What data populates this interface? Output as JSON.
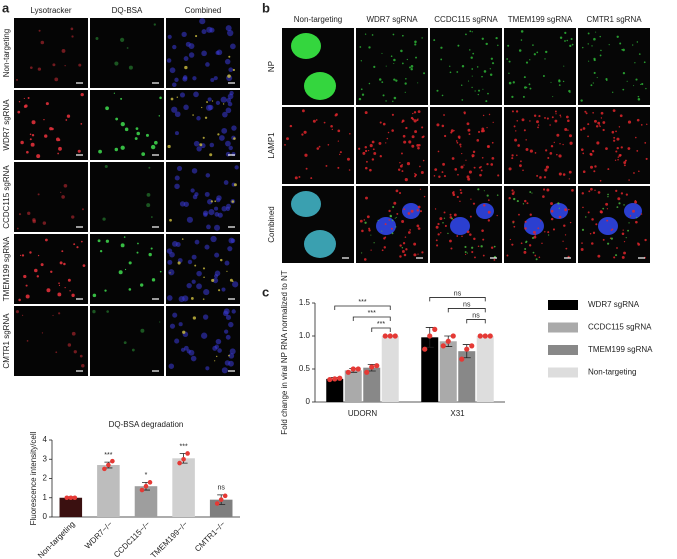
{
  "panel_a": {
    "label": "a",
    "columns": [
      "Lysotracker",
      "DQ-BSA",
      "Combined"
    ],
    "rows": [
      "Non-targeting",
      "WDR7 sgRNA",
      "CCDC115 sgRNA",
      "TMEM199 sgRNA",
      "CMTR1 sgRNA"
    ]
  },
  "panel_b": {
    "label": "b",
    "columns": [
      "Non-targeting",
      "WDR7 sgRNA",
      "CCDC115 sgRNA",
      "TMEM199 sgRNA",
      "CMTR1 sgRNA"
    ],
    "rows": [
      "NP",
      "LAMP1",
      "Combined"
    ]
  },
  "panel_c": {
    "label": "c"
  },
  "chart_data": [
    {
      "type": "bar",
      "title": "DQ-BSA degradation",
      "y_label": "Fluorescence intensity/cell",
      "categories": [
        "Non-targeting",
        "WDR7−/−",
        "CCDC115−/−",
        "TMEM199−/−",
        "CMTR1−/−"
      ],
      "values": [
        1,
        2.7,
        1.6,
        3.05,
        0.9
      ],
      "errors": [
        0.05,
        0.15,
        0.2,
        0.25,
        0.25
      ],
      "points": [
        [
          1,
          1,
          1
        ],
        [
          2.5,
          2.7,
          2.9
        ],
        [
          1.4,
          1.6,
          1.8
        ],
        [
          2.8,
          3.0,
          3.3
        ],
        [
          0.7,
          0.9,
          1.1
        ]
      ],
      "point_color": "#e53935",
      "colors": [
        "#3a1010",
        "#bdbdbd",
        "#9e9e9e",
        "#d0d0d0",
        "#7f7f7f"
      ],
      "significance": [
        null,
        "***",
        "*",
        "***",
        "ns"
      ],
      "ylim": [
        0,
        4
      ],
      "yticks": [
        0,
        1,
        2,
        3,
        4
      ]
    },
    {
      "type": "grouped_bar",
      "y_label": "Fold change in viral NP RNA normalized to NT",
      "categories": [
        "UDORN",
        "X31"
      ],
      "series": [
        {
          "name": "WDR7 sgRNA",
          "color": "#000000",
          "values": [
            0.35,
            0.98
          ],
          "errors": [
            0.02,
            0.15
          ],
          "points": [
            [
              0.34,
              0.35,
              0.36
            ],
            [
              0.8,
              1.0,
              1.1
            ]
          ],
          "significance": [
            "***",
            "ns"
          ]
        },
        {
          "name": "CCDC115 sgRNA",
          "color": "#aaaaaa",
          "values": [
            0.48,
            0.92
          ],
          "errors": [
            0.03,
            0.08
          ],
          "points": [
            [
              0.45,
              0.5,
              0.5
            ],
            [
              0.85,
              0.92,
              1.0
            ]
          ],
          "significance": [
            "***",
            "ns"
          ]
        },
        {
          "name": "TMEM199 sgRNA",
          "color": "#888888",
          "values": [
            0.52,
            0.77
          ],
          "errors": [
            0.05,
            0.1
          ],
          "points": [
            [
              0.45,
              0.53,
              0.55
            ],
            [
              0.65,
              0.8,
              0.85
            ]
          ],
          "significance": [
            "***",
            "ns"
          ]
        },
        {
          "name": "Non-targeting",
          "color": "#dddddd",
          "values": [
            1,
            1
          ],
          "errors": [
            0,
            0
          ],
          "points": [
            [
              1,
              1,
              1
            ],
            [
              1,
              1,
              1
            ]
          ]
        }
      ],
      "point_color": "#e53935",
      "ylim": [
        0,
        1.5
      ],
      "yticks": [
        0,
        0.5,
        {
          "value": 1,
          "label": "1.0"
        },
        1.5
      ]
    }
  ]
}
